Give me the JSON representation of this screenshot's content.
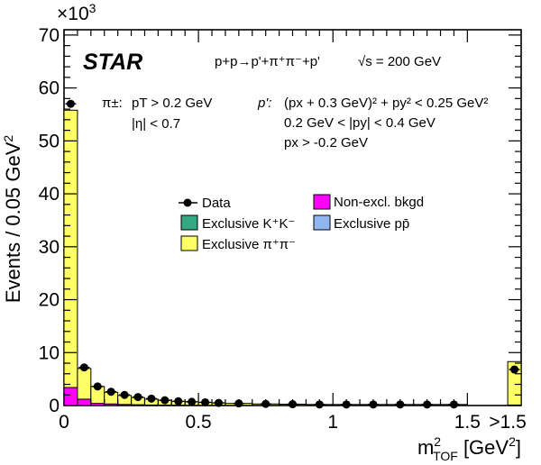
{
  "chart_data": {
    "type": "bar",
    "y_multiplier_label": "×10",
    "y_multiplier_exp": "3",
    "ylabel": "Events / 0.05 GeV",
    "ylabel_sup": "2",
    "xlabel": {
      "m": "m",
      "sup": "2",
      "sub": "TOF",
      "unit": " [GeV",
      "unit_sup": "2",
      "unit_close": "]"
    },
    "ylim": [
      0,
      71
    ],
    "xlim": [
      0,
      1.7
    ],
    "y_ticks": [
      "0",
      "10",
      "20",
      "30",
      "40",
      "50",
      "60",
      "70"
    ],
    "x_ticks": [
      "0",
      "0.5",
      "1",
      "1.5",
      ">1.5"
    ],
    "x_tick_values": [
      0,
      0.5,
      1,
      1.5,
      1.65
    ],
    "experiment": "STAR",
    "reaction": "p+p→p'+π⁺π⁻+p'",
    "energy": "√s = 200 GeV",
    "cuts_pion": {
      "symbol": "π±:",
      "line1": "pT > 0.2 GeV",
      "line2": "|η| < 0.7"
    },
    "cuts_proton": {
      "symbol": "p':",
      "line1": "(px + 0.3 GeV)² + py² < 0.25 GeV²",
      "line2": "0.2 GeV < |py| < 0.4 GeV",
      "line3": "px > -0.2 GeV"
    },
    "legend": [
      {
        "label": "Data",
        "kind": "marker",
        "color": "#000000"
      },
      {
        "label": "Non-excl. bkgd",
        "kind": "box",
        "color": "#ff00ff"
      },
      {
        "label": "Exclusive K⁺K⁻",
        "kind": "box",
        "color": "#33a882"
      },
      {
        "label": "Exclusive pp̄",
        "kind": "box",
        "color": "#8fb6f0"
      },
      {
        "label": "Exclusive π⁺π⁻",
        "kind": "box",
        "color": "#ffff66"
      }
    ],
    "bins": [
      {
        "x0": 0.0,
        "x1": 0.05,
        "pipi": 55.8,
        "bkgd": 3.4
      },
      {
        "x0": 0.05,
        "x1": 0.1,
        "pipi": 7.0,
        "bkgd": 1.2
      },
      {
        "x0": 0.1,
        "x1": 0.15,
        "pipi": 3.6,
        "bkgd": 0.4
      },
      {
        "x0": 0.15,
        "x1": 0.2,
        "pipi": 2.5,
        "bkgd": 0.3
      },
      {
        "x0": 0.2,
        "x1": 0.25,
        "pipi": 1.9,
        "bkgd": 0.2
      },
      {
        "x0": 0.25,
        "x1": 0.3,
        "pipi": 1.5,
        "bkgd": 0.15
      },
      {
        "x0": 0.3,
        "x1": 0.35,
        "pipi": 1.2,
        "bkgd": 0.1
      },
      {
        "x0": 0.35,
        "x1": 0.4,
        "pipi": 1.0,
        "bkgd": 0.1
      },
      {
        "x0": 0.4,
        "x1": 0.45,
        "pipi": 0.8,
        "bkgd": 0.08
      },
      {
        "x0": 0.45,
        "x1": 0.5,
        "pipi": 0.7,
        "bkgd": 0.06
      },
      {
        "x0": 0.5,
        "x1": 0.55,
        "pipi": 0.6,
        "bkgd": 0.05
      },
      {
        "x0": 0.55,
        "x1": 0.6,
        "pipi": 0.5,
        "bkgd": 0.05
      },
      {
        "x0": 0.6,
        "x1": 0.7,
        "pipi": 0.4,
        "bkgd": 0.05
      },
      {
        "x0": 0.7,
        "x1": 0.8,
        "pipi": 0.3,
        "bkgd": 0.05
      },
      {
        "x0": 0.8,
        "x1": 0.9,
        "pipi": 0.25,
        "bkgd": 0.05
      },
      {
        "x0": 0.9,
        "x1": 1.0,
        "pipi": 0.2,
        "bkgd": 0.05
      },
      {
        "x0": 1.0,
        "x1": 1.1,
        "pipi": 0.2,
        "bkgd": 0.05
      },
      {
        "x0": 1.1,
        "x1": 1.2,
        "pipi": 0.2,
        "bkgd": 0.05
      },
      {
        "x0": 1.2,
        "x1": 1.3,
        "pipi": 0.2,
        "bkgd": 0.05
      },
      {
        "x0": 1.3,
        "x1": 1.4,
        "pipi": 0.2,
        "bkgd": 0.05
      },
      {
        "x0": 1.4,
        "x1": 1.5,
        "pipi": 0.2,
        "bkgd": 0.05
      },
      {
        "x0": 1.65,
        "x1": 1.7,
        "pipi": 8.3,
        "bkgd": 0.1
      }
    ],
    "data_points": [
      {
        "x": 0.025,
        "y": 57.0
      },
      {
        "x": 0.075,
        "y": 7.2
      },
      {
        "x": 0.125,
        "y": 3.6
      },
      {
        "x": 0.175,
        "y": 2.6
      },
      {
        "x": 0.225,
        "y": 2.0
      },
      {
        "x": 0.275,
        "y": 1.6
      },
      {
        "x": 0.325,
        "y": 1.3
      },
      {
        "x": 0.375,
        "y": 1.0
      },
      {
        "x": 0.425,
        "y": 0.8
      },
      {
        "x": 0.475,
        "y": 0.7
      },
      {
        "x": 0.525,
        "y": 0.6
      },
      {
        "x": 0.575,
        "y": 0.5
      },
      {
        "x": 0.65,
        "y": 0.4
      },
      {
        "x": 0.75,
        "y": 0.3
      },
      {
        "x": 0.85,
        "y": 0.25
      },
      {
        "x": 0.95,
        "y": 0.2
      },
      {
        "x": 1.05,
        "y": 0.2
      },
      {
        "x": 1.15,
        "y": 0.2
      },
      {
        "x": 1.25,
        "y": 0.2
      },
      {
        "x": 1.35,
        "y": 0.2
      },
      {
        "x": 1.45,
        "y": 0.2
      },
      {
        "x": 1.675,
        "y": 6.8
      }
    ],
    "colors": {
      "pipi": "#ffff66",
      "bkgd": "#ff00ff",
      "kk": "#33a882",
      "ppbar": "#8fb6f0",
      "data": "#000000"
    },
    "grid": false,
    "legend_placement": "center"
  }
}
